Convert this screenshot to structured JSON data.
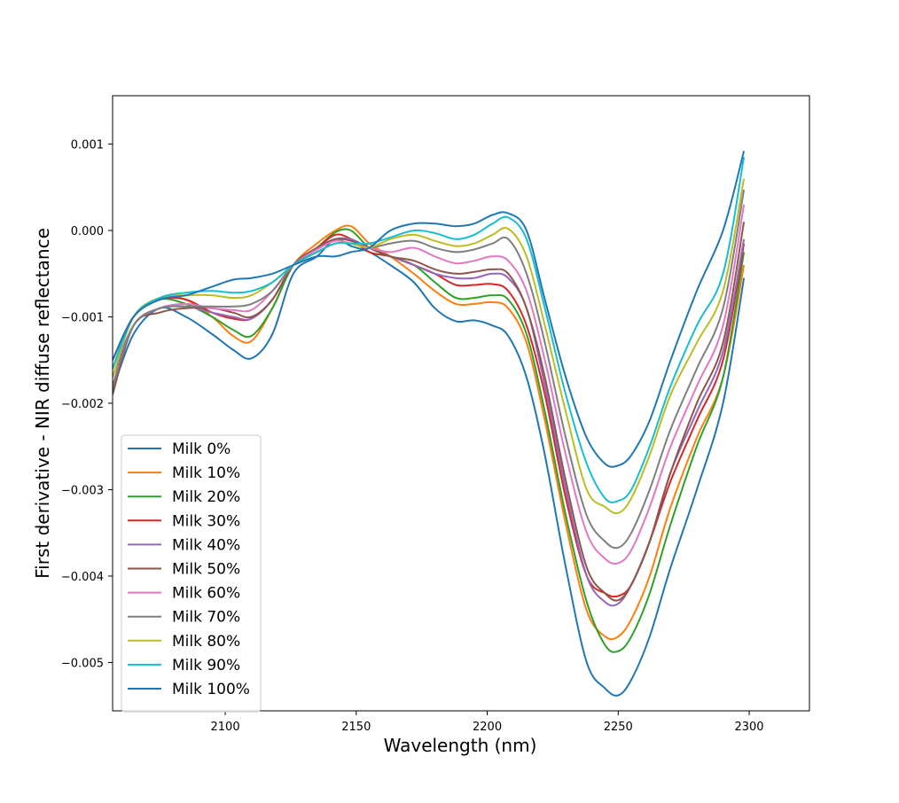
{
  "chart_data": {
    "type": "line",
    "title": "",
    "xlabel": "Wavelength (nm)",
    "ylabel": "First derivative - NIR diffuse reflectance",
    "xlim": [
      2057,
      2323
    ],
    "ylim": [
      -0.00556,
      0.00156
    ],
    "xticks": [
      2100,
      2150,
      2200,
      2250,
      2300
    ],
    "xtick_labels": [
      "2100",
      "2150",
      "2200",
      "2250",
      "2300"
    ],
    "yticks": [
      0.001,
      0.0,
      -0.001,
      -0.002,
      -0.003,
      -0.004,
      -0.005
    ],
    "ytick_labels": [
      "0.001",
      "0.000",
      "−0.001",
      "−0.002",
      "−0.003",
      "−0.004",
      "−0.005"
    ],
    "grid": false,
    "legend_position": "lower-left",
    "x": [
      2057,
      2065,
      2075,
      2085,
      2095,
      2103,
      2110,
      2118,
      2126,
      2135,
      2142,
      2148,
      2155,
      2163,
      2172,
      2180,
      2188,
      2195,
      2202,
      2208,
      2215,
      2222,
      2230,
      2238,
      2245,
      2250,
      2255,
      2262,
      2270,
      2280,
      2290,
      2298
    ],
    "series": [
      {
        "name": "Milk 0%",
        "color": "#1f77b4",
        "values": [
          -0.00185,
          -0.0012,
          -0.0009,
          -0.001,
          -0.0012,
          -0.00138,
          -0.00148,
          -0.0012,
          -0.0005,
          -0.0003,
          -0.0001,
          -0.00018,
          -0.00025,
          -0.0004,
          -0.0006,
          -0.0009,
          -0.00105,
          -0.00104,
          -0.0011,
          -0.00122,
          -0.0017,
          -0.0026,
          -0.0039,
          -0.005,
          -0.0053,
          -0.00538,
          -0.0052,
          -0.0047,
          -0.0039,
          -0.003,
          -0.002,
          -0.00055
        ]
      },
      {
        "name": "Milk 10%",
        "color": "#ff7f0e",
        "values": [
          -0.0016,
          -0.001,
          -0.00078,
          -0.0008,
          -0.001,
          -0.00122,
          -0.00128,
          -0.0009,
          -0.0004,
          -0.00015,
          0.0,
          5e-05,
          -0.00015,
          -0.0003,
          -0.0005,
          -0.0007,
          -0.00085,
          -0.00085,
          -0.00083,
          -0.0009,
          -0.0013,
          -0.0022,
          -0.0034,
          -0.0044,
          -0.0047,
          -0.0047,
          -0.0045,
          -0.004,
          -0.0032,
          -0.0024,
          -0.0017,
          -0.0004
        ]
      },
      {
        "name": "Milk 20%",
        "color": "#2ca02c",
        "values": [
          -0.0016,
          -0.001,
          -0.0008,
          -0.00085,
          -0.001,
          -0.00115,
          -0.00122,
          -0.0009,
          -0.0004,
          -0.0002,
          -2e-05,
          0.0,
          -0.0002,
          -0.0003,
          -0.0004,
          -0.0006,
          -0.00078,
          -0.00078,
          -0.00075,
          -0.0008,
          -0.0012,
          -0.0021,
          -0.0033,
          -0.0043,
          -0.0048,
          -0.00487,
          -0.0047,
          -0.0042,
          -0.0034,
          -0.0025,
          -0.0017,
          -0.00025
        ]
      },
      {
        "name": "Milk 30%",
        "color": "#d62728",
        "values": [
          -0.0015,
          -0.001,
          -0.0008,
          -0.0008,
          -0.00095,
          -0.00102,
          -0.00102,
          -0.0008,
          -0.0004,
          -0.0002,
          -5e-05,
          -0.0001,
          -0.00025,
          -0.0003,
          -0.0004,
          -0.0005,
          -0.00063,
          -0.00063,
          -0.00062,
          -0.0007,
          -0.0011,
          -0.0019,
          -0.0031,
          -0.004,
          -0.0042,
          -0.00423,
          -0.0041,
          -0.0036,
          -0.0029,
          -0.0022,
          -0.0015,
          -0.00015
        ]
      },
      {
        "name": "Milk 40%",
        "color": "#9467bd",
        "values": [
          -0.0017,
          -0.0011,
          -0.0009,
          -0.00088,
          -0.00095,
          -0.001,
          -0.00102,
          -0.0008,
          -0.0004,
          -0.0002,
          -0.0001,
          -0.0001,
          -0.0002,
          -0.0003,
          -0.0004,
          -0.0005,
          -0.00055,
          -0.00055,
          -0.0005,
          -0.00055,
          -0.0009,
          -0.0018,
          -0.003,
          -0.004,
          -0.0043,
          -0.00432,
          -0.0041,
          -0.0036,
          -0.0028,
          -0.0021,
          -0.0014,
          -0.0001
        ]
      },
      {
        "name": "Milk 50%",
        "color": "#8c564b",
        "values": [
          -0.0019,
          -0.0011,
          -0.00095,
          -0.0009,
          -0.0009,
          -0.00095,
          -0.001,
          -0.0008,
          -0.0004,
          -0.0002,
          -0.0001,
          -0.00012,
          -0.0002,
          -0.0003,
          -0.00035,
          -0.00045,
          -0.0005,
          -0.00048,
          -0.00045,
          -0.0005,
          -0.0009,
          -0.0017,
          -0.0029,
          -0.0039,
          -0.0042,
          -0.00428,
          -0.0041,
          -0.0036,
          -0.0028,
          -0.002,
          -0.0013,
          0.0001
        ]
      },
      {
        "name": "Milk 60%",
        "color": "#e377c2",
        "values": [
          -0.0018,
          -0.0011,
          -0.0009,
          -0.00085,
          -0.0009,
          -0.00092,
          -0.00092,
          -0.0007,
          -0.0004,
          -0.00022,
          -0.00012,
          -0.00015,
          -0.0002,
          -0.00025,
          -0.0002,
          -0.0003,
          -0.00038,
          -0.00035,
          -0.0003,
          -0.00035,
          -0.0007,
          -0.0015,
          -0.0026,
          -0.0035,
          -0.0038,
          -0.00385,
          -0.0037,
          -0.0032,
          -0.0025,
          -0.0018,
          -0.0011,
          0.0003
        ]
      },
      {
        "name": "Milk 70%",
        "color": "#7f7f7f",
        "values": [
          -0.0018,
          -0.0011,
          -0.0009,
          -0.00088,
          -0.00088,
          -0.00088,
          -0.00085,
          -0.0007,
          -0.0004,
          -0.00025,
          -0.00015,
          -0.00015,
          -0.0002,
          -0.00015,
          -0.00012,
          -0.0002,
          -0.00025,
          -0.00022,
          -0.00015,
          -0.0001,
          -0.0005,
          -0.0013,
          -0.0024,
          -0.0033,
          -0.0036,
          -0.00367,
          -0.0035,
          -0.003,
          -0.0023,
          -0.0016,
          -0.0009,
          0.00047
        ]
      },
      {
        "name": "Milk 80%",
        "color": "#bcbd22",
        "values": [
          -0.0017,
          -0.001,
          -0.00078,
          -0.00075,
          -0.00075,
          -0.00078,
          -0.00075,
          -0.0006,
          -0.0004,
          -0.00025,
          -0.00015,
          -0.00015,
          -0.0002,
          -0.0001,
          -5e-05,
          -0.00012,
          -0.00018,
          -0.00015,
          -5e-05,
          2e-05,
          -0.0003,
          -0.0011,
          -0.0021,
          -0.003,
          -0.0032,
          -0.00327,
          -0.0031,
          -0.0026,
          -0.0019,
          -0.0013,
          -0.0007,
          0.0006
        ]
      },
      {
        "name": "Milk 90%",
        "color": "#17becf",
        "values": [
          -0.0016,
          -0.001,
          -0.00078,
          -0.00072,
          -0.0007,
          -0.00072,
          -0.0007,
          -0.0006,
          -0.0004,
          -0.00025,
          -0.00015,
          -0.00015,
          -0.00015,
          -8e-05,
          0.0,
          -3e-05,
          -0.0001,
          -5e-05,
          8e-05,
          0.00015,
          -0.0001,
          -0.0009,
          -0.0019,
          -0.0027,
          -0.0031,
          -0.00313,
          -0.003,
          -0.0025,
          -0.0018,
          -0.0011,
          -0.0005,
          0.00085
        ]
      },
      {
        "name": "Milk 100%",
        "color": "#1f77b4",
        "values": [
          -0.0015,
          -0.001,
          -0.0008,
          -0.00075,
          -0.00065,
          -0.00057,
          -0.00055,
          -0.0005,
          -0.0004,
          -0.0003,
          -0.0003,
          -0.00025,
          -0.0002,
          0.0,
          8e-05,
          8e-05,
          5e-05,
          8e-05,
          0.00018,
          0.0002,
          0.0,
          -0.0008,
          -0.0017,
          -0.0024,
          -0.0027,
          -0.00272,
          -0.0026,
          -0.0022,
          -0.0015,
          -0.0007,
          0.0,
          0.00092
        ]
      }
    ]
  }
}
